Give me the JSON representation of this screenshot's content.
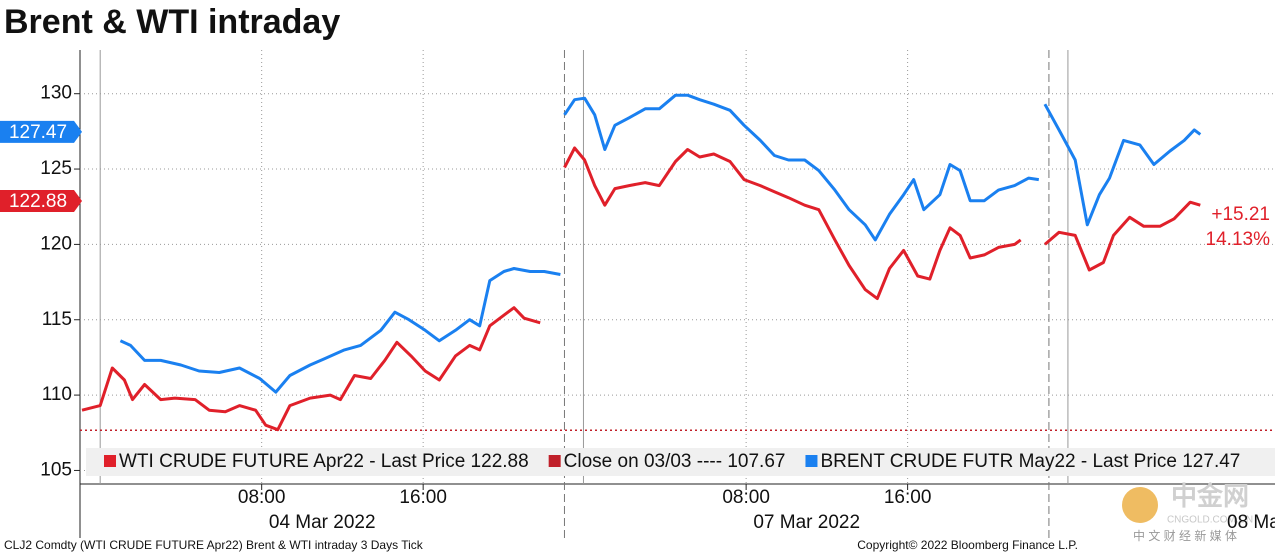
{
  "chart_data": {
    "type": "line",
    "title": "Brent & WTI intraday",
    "xlim": [
      0,
      59.2
    ],
    "ylim": [
      104.1,
      132.9
    ],
    "xticks": [
      {
        "value": 9,
        "label": "08:00"
      },
      {
        "value": 17,
        "label": "16:00"
      },
      {
        "value": 33,
        "label": "08:00"
      },
      {
        "value": 41,
        "label": "16:00"
      }
    ],
    "dates": [
      "04 Mar 2022",
      "07 Mar 2022",
      "08 Ma"
    ],
    "yticks": [
      105,
      110,
      115,
      120,
      125,
      130
    ],
    "grid": true,
    "series": [
      {
        "name": "WTI CRUDE FUTURE Apr22 - Last Price 122.88",
        "color": "#e0202a",
        "last_price": {
          "value": 122.88,
          "label": "122.88"
        },
        "x": [
          0.1,
          1.0,
          1.6,
          2.2,
          2.6,
          3.2,
          4.0,
          4.7,
          5.7,
          6.4,
          7.2,
          7.9,
          8.7,
          9.2,
          9.8,
          10.4,
          11.4,
          12.4,
          12.9,
          13.6,
          14.4,
          15.1,
          15.7,
          16.4,
          17.1,
          17.8,
          18.6,
          19.3,
          19.8,
          20.3,
          21.0,
          21.5,
          22.0,
          22.8,
          23.5,
          24.0,
          24.5,
          25.0,
          25.5,
          26.0,
          26.5,
          27.2,
          28.0,
          28.7,
          29.5,
          30.1,
          30.7,
          31.4,
          32.2,
          32.9,
          33.7,
          34.4,
          35.1,
          35.9,
          36.6,
          37.4,
          38.1,
          38.9,
          39.5,
          40.1,
          40.8,
          41.5,
          42.1,
          42.6,
          43.1,
          43.6,
          44.1,
          44.8,
          45.5,
          46.3,
          46.6,
          47.5,
          47.8,
          48.5,
          49.3,
          50.0,
          50.7,
          51.2,
          52.0,
          52.7,
          53.5,
          54.2,
          55.0,
          55.5
        ],
        "values": [
          109.0,
          109.3,
          111.8,
          111.0,
          109.7,
          110.7,
          109.7,
          109.8,
          109.7,
          109.0,
          108.9,
          109.3,
          109.0,
          108.0,
          107.7,
          109.3,
          109.8,
          110.0,
          109.7,
          111.3,
          111.1,
          112.3,
          113.5,
          112.6,
          111.6,
          111.0,
          112.6,
          113.3,
          113.0,
          114.6,
          115.3,
          115.8,
          115.1,
          114.8,
          null,
          125.1,
          126.4,
          125.6,
          123.9,
          122.6,
          123.7,
          123.9,
          124.1,
          123.9,
          125.5,
          126.3,
          125.8,
          126.0,
          125.5,
          124.3,
          123.9,
          123.5,
          123.1,
          122.6,
          122.3,
          120.3,
          118.6,
          117.0,
          116.4,
          118.4,
          119.6,
          117.9,
          117.7,
          119.6,
          121.1,
          120.6,
          119.1,
          119.3,
          119.8,
          120.0,
          120.3,
          null,
          120.0,
          120.8,
          120.6,
          118.3,
          118.8,
          120.6,
          121.8,
          121.2,
          121.2,
          121.7,
          122.8,
          122.6
        ]
      },
      {
        "name": "BRENT CRUDE FUTR May22 - Last Price 127.47",
        "color": "#1a80f0",
        "last_price": {
          "value": 127.47,
          "label": "127.47"
        },
        "x": [
          2.0,
          2.5,
          3.2,
          4.0,
          5.0,
          5.9,
          6.9,
          7.9,
          8.9,
          9.7,
          10.4,
          11.4,
          12.1,
          13.1,
          13.9,
          14.9,
          15.6,
          16.3,
          17.1,
          17.8,
          18.6,
          19.3,
          19.8,
          20.3,
          21.0,
          21.5,
          22.3,
          23.0,
          23.8,
          23.9,
          24.0,
          24.5,
          25.0,
          25.5,
          26.0,
          26.5,
          27.2,
          28.0,
          28.7,
          29.5,
          30.1,
          30.7,
          31.4,
          32.2,
          32.9,
          33.7,
          34.4,
          35.1,
          35.9,
          36.6,
          37.4,
          38.1,
          38.9,
          39.4,
          40.1,
          40.8,
          41.3,
          41.8,
          42.6,
          43.1,
          43.6,
          44.1,
          44.8,
          45.5,
          46.3,
          47.0,
          47.5,
          47.7,
          47.8,
          48.5,
          49.3,
          49.9,
          50.5,
          51.0,
          51.7,
          52.5,
          53.2,
          54.0,
          54.7,
          55.2,
          55.5
        ],
        "values": [
          113.6,
          113.3,
          112.3,
          112.3,
          112.0,
          111.6,
          111.5,
          111.8,
          111.1,
          110.2,
          111.3,
          112.0,
          112.4,
          113.0,
          113.3,
          114.3,
          115.5,
          115.0,
          114.3,
          113.6,
          114.3,
          115.0,
          114.6,
          117.6,
          118.2,
          118.4,
          118.2,
          118.2,
          118.0,
          null,
          128.6,
          129.6,
          129.7,
          128.6,
          126.3,
          127.9,
          128.4,
          129.0,
          129.0,
          129.9,
          129.9,
          129.6,
          129.3,
          128.9,
          127.9,
          126.9,
          125.9,
          125.6,
          125.6,
          124.9,
          123.6,
          122.3,
          121.3,
          120.3,
          122.0,
          123.3,
          124.3,
          122.3,
          123.3,
          125.3,
          124.9,
          122.9,
          122.9,
          123.6,
          123.9,
          124.4,
          124.3,
          null,
          129.3,
          127.6,
          125.6,
          121.3,
          123.3,
          124.4,
          126.9,
          126.6,
          125.3,
          126.2,
          126.9,
          127.6,
          127.3
        ]
      }
    ],
    "reference": {
      "name": "Close on 03/03 ---- 107.67",
      "color": "#c0202a",
      "value": 107.67
    },
    "annotations": [
      "+15.21",
      "14.13%"
    ],
    "footer": "CLJ2 Comdty (WTI CRUDE FUTURE  Apr22) Brent & WTI intraday 3 Days  Tick",
    "copyright": "Copyright© 2022 Bloomberg Finance L.P.",
    "watermark": {
      "title": "中金网",
      "url": "CNGOLD.COM.CN",
      "slogan": "中 文 财 经 新 媒 体"
    }
  }
}
